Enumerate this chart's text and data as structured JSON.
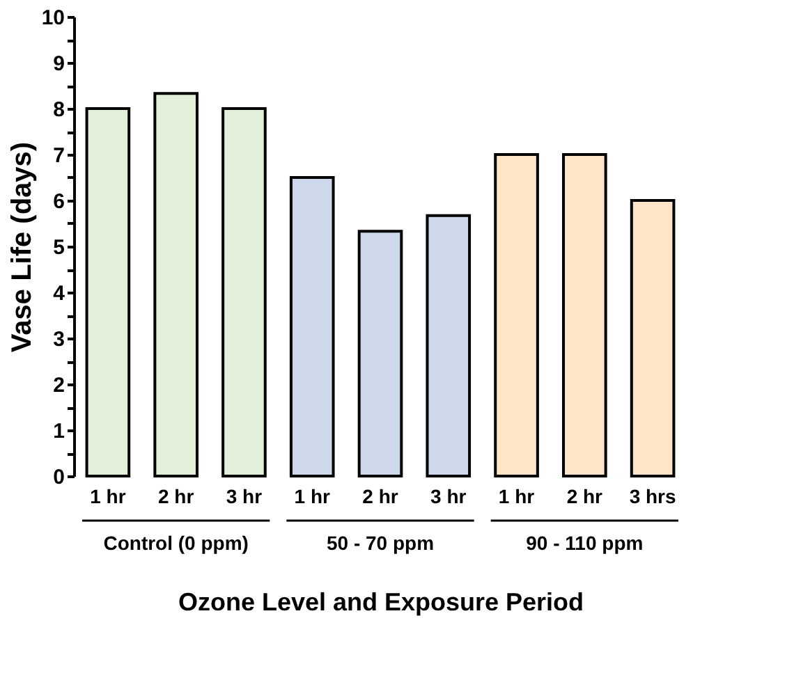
{
  "chart_data": {
    "type": "bar",
    "xlabel": "Ozone Level and Exposure Period",
    "ylabel": "Vase Life (days)",
    "categories": [
      "1 hr",
      "2 hr",
      "3 hr",
      "1 hr",
      "2 hr",
      "3 hr",
      "1 hr",
      "2 hr",
      "3 hrs"
    ],
    "values": [
      8,
      8.33,
      8,
      6.5,
      5.33,
      5.67,
      7,
      7,
      6
    ],
    "colors": [
      "#e2f0d9",
      "#e2f0d9",
      "#e2f0d9",
      "#cdd9ea",
      "#cdd9ea",
      "#cdd9ea",
      "#fde5c8",
      "#fde5c8",
      "#fde5c8"
    ],
    "annotations": [
      "Control (0 ppm)",
      "50 - 70 ppm",
      "90 - 110 ppm"
    ],
    "ylim": [
      0,
      10
    ],
    "yticks": [
      0,
      {
        "value": 0.5,
        "label": null
      },
      1,
      {
        "value": 1.5,
        "label": null
      },
      2,
      {
        "value": 2.5,
        "label": null
      },
      3,
      {
        "value": 3.5,
        "label": null
      },
      4,
      {
        "value": 4.5,
        "label": null
      },
      5,
      {
        "value": 5.5,
        "label": null
      },
      6,
      {
        "value": 6.5,
        "label": null
      },
      7,
      {
        "value": 7.5,
        "label": null
      },
      8,
      {
        "value": 8.5,
        "label": null
      },
      9,
      {
        "value": 9.5,
        "label": null
      },
      10
    ],
    "grid": false
  }
}
